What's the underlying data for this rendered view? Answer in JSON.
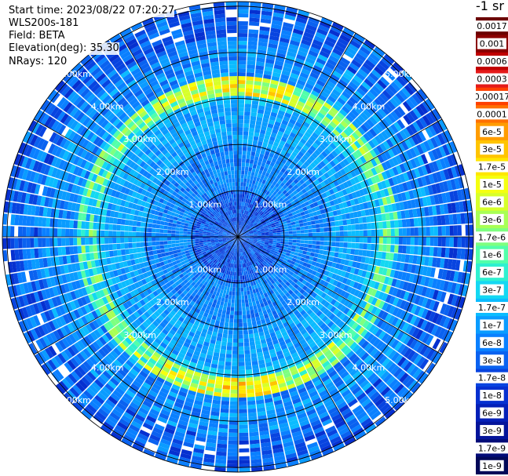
{
  "header": {
    "start_time": "Start time: 2023/08/22 07:20:27",
    "instrument": "WLS200s-181",
    "field": "Field: BETA",
    "elevation": "Elevation(deg): 35.30",
    "nrays": "NRays: 120",
    "unit": "-1 sr"
  },
  "chart_data": {
    "type": "heatmap",
    "projection": "polar-ppi",
    "field": "BETA",
    "elevation_deg": 35.3,
    "n_rays": 120,
    "range_rings_km": [
      1,
      2,
      3,
      4,
      5
    ],
    "ring_labels": [
      "1.00km",
      "2.00km",
      "3.00km",
      "4.00km",
      "5.00km"
    ],
    "spokes_deg": [
      0,
      30,
      60,
      90,
      120,
      150,
      180,
      210,
      240,
      270,
      300,
      330
    ],
    "enhanced_layer_km": [
      3.05,
      3.45
    ],
    "colorbar": {
      "labels": [
        "0.0017",
        "0.001",
        "0.0006",
        "0.0003",
        "0.00017",
        "0.0001",
        "6e-5",
        "3e-5",
        "1.7e-5",
        "1e-5",
        "6e-6",
        "3e-6",
        "1.7e-6",
        "1e-6",
        "6e-7",
        "3e-7",
        "1.7e-7",
        "1e-7",
        "6e-8",
        "3e-8",
        "1.7e-8",
        "1e-8",
        "6e-9",
        "3e-9",
        "1.7e-9",
        "1e-9"
      ],
      "colors": [
        "#6b0000",
        "#8a0000",
        "#c00000",
        "#e41a1a",
        "#ff4000",
        "#ff7000",
        "#ff9c00",
        "#ffc400",
        "#ffe600",
        "#f5ff10",
        "#d7ff2a",
        "#a8ff55",
        "#7dff80",
        "#52ffaa",
        "#2ff0d0",
        "#14d8f2",
        "#0bbcff",
        "#0a9cff",
        "#0a80ff",
        "#0a62f0",
        "#0844e0",
        "#0630d0",
        "#0520b8",
        "#04149a",
        "#030c78",
        "#020858"
      ]
    }
  }
}
